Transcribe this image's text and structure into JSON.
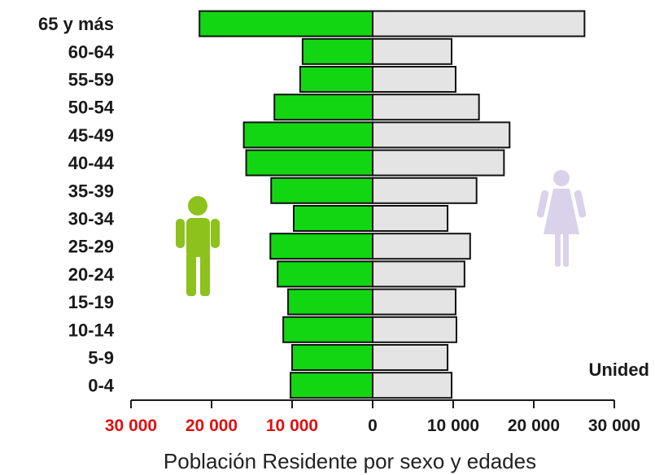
{
  "chart_data": {
    "type": "bar",
    "orientation": "horizontal",
    "layout": "population-pyramid",
    "categories": [
      "65 y más",
      "60-64",
      "55-59",
      "50-54",
      "45-49",
      "40-44",
      "35-39",
      "30-34",
      "25-29",
      "20-24",
      "15-19",
      "10-14",
      "5-9",
      "0-4"
    ],
    "series": [
      {
        "side": "left",
        "color": "#13d613",
        "values": [
          21500,
          8700,
          9000,
          12200,
          16000,
          15700,
          12600,
          9800,
          12700,
          11800,
          10500,
          11100,
          10000,
          10200
        ]
      },
      {
        "side": "right",
        "color": "#e4e4e4",
        "values": [
          26300,
          9800,
          10300,
          13200,
          17000,
          16300,
          12900,
          9300,
          12100,
          11400,
          10300,
          10400,
          9300,
          9800
        ]
      }
    ],
    "xlim": [
      -30000,
      30000
    ],
    "x_ticks": [
      -30000,
      -20000,
      -10000,
      0,
      10000,
      20000,
      30000
    ],
    "x_tick_labels": [
      "30 000",
      "20 000",
      "10 000",
      "0",
      "10 000",
      "20 000",
      "30 000"
    ],
    "x_tick_colors": [
      "#e01010",
      "#e01010",
      "#e01010",
      "#1a1a1a",
      "#1a1a1a",
      "#1a1a1a",
      "#1a1a1a"
    ],
    "unit_label": "Unided",
    "xlabel": "Población Residente por sexo y edades",
    "icons": {
      "left": "male-figure-icon",
      "left_color": "#8cc21b",
      "right": "female-figure-icon",
      "right_color": "#d9d2ea"
    }
  }
}
